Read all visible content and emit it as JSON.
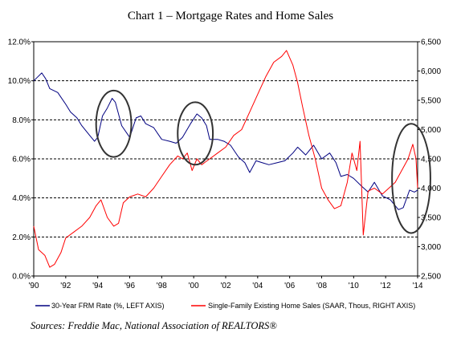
{
  "chart_data": {
    "type": "line",
    "title": "Chart 1 – Mortgage Rates and Home Sales",
    "source": "Sources: Freddie Mac, National Association of REALTORS®",
    "x_ticks": [
      "'90",
      "'92",
      "'94",
      "'96",
      "'98",
      "'00",
      "'02",
      "'04",
      "'06",
      "'08",
      "'10",
      "'12",
      "'14"
    ],
    "xlim": [
      1990,
      2014
    ],
    "y_left": {
      "ticks": [
        "0.0%",
        "2.0%",
        "4.0%",
        "6.0%",
        "8.0%",
        "10.0%",
        "12.0%"
      ],
      "ylim": [
        0,
        12
      ]
    },
    "y_right": {
      "ticks": [
        "2,500",
        "3,000",
        "3,500",
        "4,000",
        "4,500",
        "5,000",
        "5,500",
        "6,000",
        "6,500"
      ],
      "ylim": [
        2500,
        6500
      ]
    },
    "dashed_gridlines_left": [
      2,
      4,
      6,
      8,
      10
    ],
    "series": [
      {
        "name": "30-Year FRM Rate (%, LEFT AXIS)",
        "axis": "left",
        "color": "#000080",
        "x": [
          1990.0,
          1990.25,
          1990.5,
          1990.75,
          1991.0,
          1991.5,
          1992.0,
          1992.3,
          1992.7,
          1993.0,
          1993.5,
          1993.8,
          1994.0,
          1994.3,
          1994.6,
          1994.9,
          1995.1,
          1995.5,
          1996.0,
          1996.4,
          1996.7,
          1997.0,
          1997.5,
          1998.0,
          1998.5,
          1998.9,
          1999.3,
          1999.8,
          2000.2,
          2000.5,
          2000.8,
          2001.0,
          2001.5,
          2001.9,
          2002.3,
          2002.8,
          2003.2,
          2003.5,
          2003.9,
          2004.3,
          2004.7,
          2005.2,
          2005.7,
          2006.2,
          2006.5,
          2007.0,
          2007.5,
          2008.0,
          2008.5,
          2008.9,
          2009.2,
          2009.6,
          2010.0,
          2010.5,
          2010.9,
          2011.3,
          2011.8,
          2012.3,
          2012.8,
          2013.1,
          2013.5,
          2013.8,
          2014.0
        ],
        "values": [
          10.0,
          10.2,
          10.4,
          10.1,
          9.6,
          9.4,
          8.8,
          8.4,
          8.1,
          7.7,
          7.2,
          6.9,
          7.1,
          8.2,
          8.6,
          9.1,
          8.9,
          7.7,
          7.1,
          8.1,
          8.2,
          7.8,
          7.6,
          7.0,
          6.9,
          6.8,
          7.1,
          7.8,
          8.3,
          8.1,
          7.7,
          7.0,
          7.0,
          6.9,
          6.7,
          6.1,
          5.8,
          5.3,
          5.9,
          5.8,
          5.7,
          5.8,
          5.9,
          6.3,
          6.6,
          6.2,
          6.7,
          6.0,
          6.3,
          5.8,
          5.1,
          5.2,
          5.0,
          4.6,
          4.3,
          4.8,
          4.1,
          3.9,
          3.4,
          3.5,
          4.4,
          4.3,
          4.4
        ]
      },
      {
        "name": "Single-Family Existing Home Sales (SAAR, Thous, RIGHT AXIS)",
        "axis": "right",
        "color": "#ff0000",
        "x": [
          1990.0,
          1990.3,
          1990.7,
          1991.0,
          1991.3,
          1991.7,
          1992.0,
          1992.5,
          1993.0,
          1993.5,
          1993.9,
          1994.2,
          1994.6,
          1995.0,
          1995.3,
          1995.6,
          1996.0,
          1996.5,
          1997.0,
          1997.5,
          1998.0,
          1998.5,
          1999.0,
          1999.3,
          1999.6,
          1999.9,
          2000.2,
          2000.5,
          2001.0,
          2001.5,
          2002.0,
          2002.5,
          2003.0,
          2003.5,
          2004.0,
          2004.5,
          2005.0,
          2005.5,
          2005.8,
          2006.2,
          2006.5,
          2006.8,
          2007.2,
          2007.6,
          2008.0,
          2008.4,
          2008.8,
          2009.2,
          2009.6,
          2009.9,
          2010.2,
          2010.4,
          2010.6,
          2010.9,
          2011.3,
          2011.8,
          2012.2,
          2012.6,
          2013.0,
          2013.4,
          2013.7,
          2013.9,
          2014.0
        ],
        "values": [
          3350,
          2950,
          2850,
          2650,
          2700,
          2900,
          3150,
          3250,
          3350,
          3500,
          3700,
          3800,
          3500,
          3350,
          3400,
          3750,
          3850,
          3900,
          3850,
          4000,
          4200,
          4400,
          4550,
          4500,
          4600,
          4300,
          4500,
          4400,
          4500,
          4600,
          4700,
          4900,
          5000,
          5300,
          5600,
          5900,
          6150,
          6250,
          6350,
          6100,
          5800,
          5400,
          4900,
          4500,
          4000,
          3800,
          3650,
          3700,
          4100,
          4600,
          4300,
          4800,
          3200,
          3950,
          4000,
          3900,
          4000,
          4100,
          4300,
          4500,
          4750,
          4500,
          4000
        ]
      }
    ],
    "ellipses": [
      {
        "cx": 1995.0,
        "cy_left": 7.8,
        "rx_years": 1.1,
        "ry_pct": 1.7
      },
      {
        "cx": 2000.1,
        "cy_left": 7.3,
        "rx_years": 1.1,
        "ry_pct": 1.6
      },
      {
        "cx": 2013.6,
        "cy_left": 5.0,
        "rx_years": 1.2,
        "ry_pct": 2.8
      }
    ],
    "legend_position": "bottom"
  }
}
